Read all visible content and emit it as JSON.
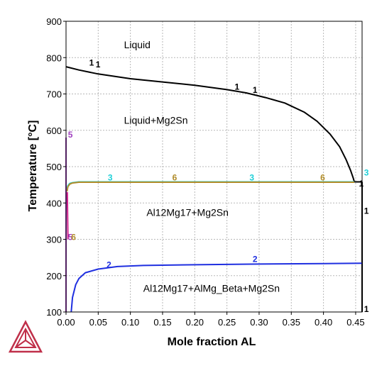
{
  "chart_data": {
    "type": "line",
    "xlabel": "Mole fraction AL",
    "ylabel": "Temperature [°C]",
    "xlim": [
      0,
      0.46
    ],
    "ylim": [
      100,
      900
    ],
    "x_ticks": [
      "0.00",
      "0.05",
      "0.10",
      "0.15",
      "0.20",
      "0.25",
      "0.30",
      "0.35",
      "0.40",
      "0.45"
    ],
    "x_tick_values": [
      0,
      0.05,
      0.1,
      0.15,
      0.2,
      0.25,
      0.3,
      0.35,
      0.4,
      0.45
    ],
    "y_ticks": [
      "100",
      "200",
      "300",
      "400",
      "500",
      "600",
      "700",
      "800",
      "900"
    ],
    "y_tick_values": [
      100,
      200,
      300,
      400,
      500,
      600,
      700,
      800,
      900
    ],
    "grid": true,
    "region_labels": [
      {
        "text": "Liquid",
        "x": 0.09,
        "y": 826
      },
      {
        "text": "Liquid+Mg2Sn",
        "x": 0.09,
        "y": 618
      },
      {
        "text": "Al12Mg17+Mg2Sn",
        "x": 0.125,
        "y": 364
      },
      {
        "text": "Al12Mg17+AlMg_Beta+Mg2Sn",
        "x": 0.12,
        "y": 156
      }
    ],
    "series": [
      {
        "label": "1",
        "color": "#000000",
        "x": [
          0.0,
          0.02,
          0.05,
          0.1,
          0.15,
          0.2,
          0.25,
          0.28,
          0.31,
          0.34,
          0.37,
          0.39,
          0.41,
          0.425,
          0.435,
          0.442,
          0.446,
          0.448
        ],
        "y": [
          775,
          766,
          755,
          742,
          733,
          724,
          712,
          703,
          690,
          675,
          650,
          625,
          590,
          555,
          520,
          490,
          470,
          458
        ]
      },
      {
        "label": "1",
        "color": "#000000",
        "x": [
          0.448,
          0.46
        ],
        "y": [
          458,
          458
        ]
      },
      {
        "label": "1",
        "color": "#000000",
        "x": [
          0.46,
          0.46
        ],
        "y": [
          458,
          100
        ]
      },
      {
        "label": "2",
        "color": "#1f2fe0",
        "x": [
          0.008,
          0.01,
          0.015,
          0.02,
          0.03,
          0.05,
          0.08,
          0.12,
          0.2,
          0.3,
          0.4,
          0.46
        ],
        "y": [
          100,
          140,
          175,
          192,
          208,
          218,
          225,
          228,
          230,
          232,
          233,
          234
        ]
      },
      {
        "label": "3",
        "color": "#20d0d8",
        "x": [
          0.0015,
          0.003,
          0.006,
          0.01,
          0.02,
          0.1,
          0.3,
          0.448
        ],
        "y": [
          440,
          448,
          454,
          456,
          458,
          458,
          458,
          458
        ]
      },
      {
        "label": "6",
        "color": "#b08c2a",
        "x": [
          0.0015,
          0.003,
          0.006,
          0.01,
          0.02,
          0.1,
          0.3,
          0.448
        ],
        "y": [
          432,
          445,
          452,
          455,
          457,
          457,
          457,
          457
        ]
      },
      {
        "label": "5",
        "color": "#a040c0",
        "x": [
          0.0,
          0.0
        ],
        "y": [
          100,
          580
        ]
      },
      {
        "label": "6",
        "color": "#d0208a",
        "x": [
          0.002,
          0.003
        ],
        "y": [
          430,
          300
        ]
      }
    ],
    "curve_labels": [
      {
        "text": "1",
        "x": 0.036,
        "y": 778,
        "color": "#000000"
      },
      {
        "text": "1",
        "x": 0.046,
        "y": 773,
        "color": "#000000"
      },
      {
        "text": "1",
        "x": 0.262,
        "y": 712,
        "color": "#000000"
      },
      {
        "text": "1",
        "x": 0.29,
        "y": 703,
        "color": "#000000"
      },
      {
        "text": "1",
        "x": 0.463,
        "y": 370,
        "color": "#000000"
      },
      {
        "text": "1",
        "x": 0.455,
        "y": 445,
        "color": "#000000"
      },
      {
        "text": "1",
        "x": 0.463,
        "y": 100,
        "color": "#000000"
      },
      {
        "text": "2",
        "x": 0.063,
        "y": 222,
        "color": "#1f2fe0"
      },
      {
        "text": "2",
        "x": 0.29,
        "y": 238,
        "color": "#1f2fe0"
      },
      {
        "text": "3",
        "x": 0.065,
        "y": 462,
        "color": "#20d0d8"
      },
      {
        "text": "3",
        "x": 0.285,
        "y": 462,
        "color": "#20d0d8"
      },
      {
        "text": "3",
        "x": 0.463,
        "y": 476,
        "color": "#20d0d8"
      },
      {
        "text": "6",
        "x": 0.165,
        "y": 462,
        "color": "#b08c2a"
      },
      {
        "text": "6",
        "x": 0.395,
        "y": 462,
        "color": "#b08c2a"
      },
      {
        "text": "5",
        "x": 0.003,
        "y": 580,
        "color": "#a040c0"
      },
      {
        "text": "5",
        "x": 0.003,
        "y": 298,
        "color": "#a040c0"
      },
      {
        "text": "6",
        "x": 0.008,
        "y": 298,
        "color": "#b08c2a"
      }
    ]
  },
  "logo": {
    "name": "thermo-calc-logo-icon",
    "color": "#c0304a"
  }
}
